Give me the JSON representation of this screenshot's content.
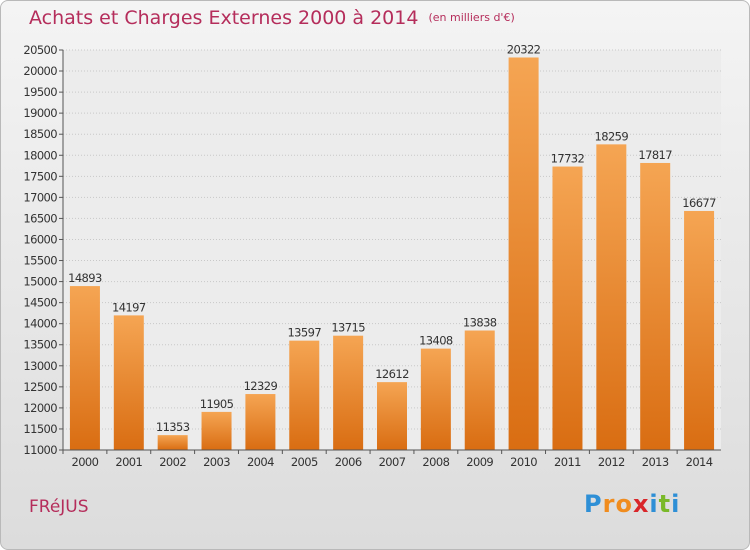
{
  "chart_data": {
    "type": "bar",
    "title": "Achats et Charges Externes 2000 à 2014",
    "subtitle": "(en milliers d'€)",
    "categories": [
      "2000",
      "2001",
      "2002",
      "2003",
      "2004",
      "2005",
      "2006",
      "2007",
      "2008",
      "2009",
      "2010",
      "2011",
      "2012",
      "2013",
      "2014"
    ],
    "values": [
      14893,
      14197,
      11353,
      11905,
      12329,
      13597,
      13715,
      12612,
      13408,
      13838,
      20322,
      17732,
      18259,
      17817,
      16677
    ],
    "ylim": [
      11000,
      20500
    ],
    "yticks": [
      11000,
      11500,
      12000,
      12500,
      13000,
      13500,
      14000,
      14500,
      15000,
      15500,
      16000,
      16500,
      17000,
      17500,
      18000,
      18500,
      19000,
      19500,
      20000,
      20500
    ],
    "grid": true,
    "bar_color": "#f0903a",
    "xlabel": "",
    "ylabel": ""
  },
  "location": "FRéJUS",
  "logo": {
    "letters": [
      "P",
      "r",
      "o",
      "x",
      "i",
      "t",
      "i"
    ],
    "colors": [
      "#2e8fd6",
      "#f08c1e",
      "#f08c1e",
      "#d9262a",
      "#2e8fd6",
      "#7ab929",
      "#2e8fd6"
    ]
  },
  "colors": {
    "title": "#b52d5b"
  }
}
